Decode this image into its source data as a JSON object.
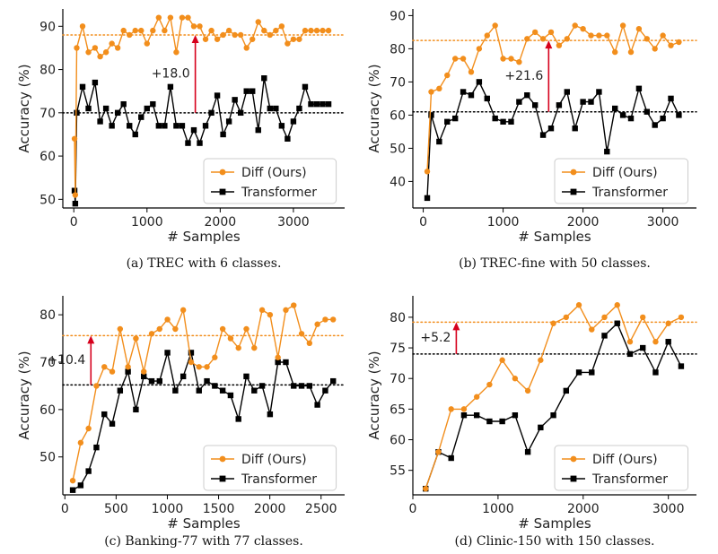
{
  "chart_data": [
    {
      "type": "line",
      "caption": "(a) TREC with 6 classes.",
      "xlabel": "# Samples",
      "ylabel": "Accuracy (%)",
      "xlim": [
        -150,
        3700
      ],
      "ylim": [
        48,
        94
      ],
      "xticks": [
        0,
        1000,
        2000,
        3000
      ],
      "yticks": [
        50,
        60,
        70,
        80,
        90
      ],
      "grid": false,
      "legend": "lower-right",
      "series": [
        {
          "name": "Diff (Ours)",
          "color": "#F28E1C",
          "marker": "circle",
          "x": [
            10,
            20,
            40,
            120,
            200,
            290,
            360,
            440,
            520,
            600,
            680,
            760,
            840,
            920,
            1000,
            1080,
            1160,
            1240,
            1320,
            1400,
            1480,
            1560,
            1640,
            1720,
            1800,
            1880,
            1960,
            2040,
            2120,
            2200,
            2280,
            2360,
            2440,
            2520,
            2600,
            2680,
            2760,
            2840,
            2920,
            3000,
            3080,
            3160,
            3240,
            3320,
            3400,
            3480
          ],
          "y": [
            64,
            51,
            85,
            90,
            84,
            85,
            83,
            84,
            86,
            85,
            89,
            88,
            89,
            89,
            86,
            89,
            92,
            89,
            92,
            84,
            92,
            92,
            90,
            90,
            87,
            89,
            87,
            88,
            89,
            88,
            88,
            85,
            87,
            91,
            89,
            88,
            89,
            90,
            86,
            87,
            87,
            89,
            89,
            89,
            89,
            89
          ]
        },
        {
          "name": "Transformer",
          "color": "#000000",
          "marker": "square",
          "x": [
            10,
            20,
            40,
            120,
            200,
            290,
            360,
            440,
            520,
            600,
            680,
            760,
            840,
            920,
            1000,
            1080,
            1160,
            1240,
            1320,
            1400,
            1480,
            1560,
            1640,
            1720,
            1800,
            1880,
            1960,
            2040,
            2120,
            2200,
            2280,
            2360,
            2440,
            2520,
            2600,
            2680,
            2760,
            2840,
            2920,
            3000,
            3080,
            3160,
            3240,
            3320,
            3400,
            3480
          ],
          "y": [
            52,
            49,
            70,
            76,
            71,
            77,
            68,
            71,
            67,
            70,
            72,
            67,
            65,
            69,
            71,
            72,
            67,
            67,
            76,
            67,
            67,
            63,
            66,
            63,
            67,
            70,
            74,
            65,
            68,
            73,
            70,
            75,
            75,
            66,
            78,
            71,
            71,
            67,
            64,
            68,
            71,
            76,
            72,
            72,
            72,
            72
          ]
        }
      ],
      "reference_lines": [
        {
          "y": 88,
          "color": "#F28E1C"
        },
        {
          "y": 70,
          "color": "#000000"
        }
      ],
      "annotation": {
        "text": "+18.0",
        "x": 1660,
        "y_from": 70,
        "y_to": 88
      }
    },
    {
      "type": "line",
      "caption": "(b) TREC-fine with 50 classes.",
      "xlabel": "# Samples",
      "ylabel": "Accuracy (%)",
      "xlim": [
        -130,
        3420
      ],
      "ylim": [
        32,
        92
      ],
      "xticks": [
        0,
        1000,
        2000,
        3000
      ],
      "yticks": [
        40,
        50,
        60,
        70,
        80,
        90
      ],
      "grid": false,
      "legend": "lower-right",
      "series": [
        {
          "name": "Diff (Ours)",
          "color": "#F28E1C",
          "marker": "circle",
          "x": [
            50,
            100,
            200,
            300,
            400,
            500,
            600,
            700,
            800,
            900,
            1000,
            1100,
            1200,
            1300,
            1400,
            1500,
            1600,
            1700,
            1800,
            1900,
            2000,
            2100,
            2200,
            2300,
            2400,
            2500,
            2600,
            2700,
            2800,
            2900,
            3000,
            3100,
            3200
          ],
          "y": [
            43,
            67,
            68,
            72,
            77,
            77,
            73,
            80,
            84,
            87,
            77,
            77,
            76,
            83,
            85,
            83,
            85,
            81,
            83,
            87,
            86,
            84,
            84,
            84,
            79,
            87,
            79,
            86,
            83,
            80,
            84,
            81,
            82
          ]
        },
        {
          "name": "Transformer",
          "color": "#000000",
          "marker": "square",
          "x": [
            50,
            100,
            200,
            300,
            400,
            500,
            600,
            700,
            800,
            900,
            1000,
            1100,
            1200,
            1300,
            1400,
            1500,
            1600,
            1700,
            1800,
            1900,
            2000,
            2100,
            2200,
            2300,
            2400,
            2500,
            2600,
            2700,
            2800,
            2900,
            3000,
            3100,
            3200
          ],
          "y": [
            35,
            60,
            52,
            58,
            59,
            67,
            66,
            70,
            65,
            59,
            58,
            58,
            64,
            66,
            63,
            54,
            56,
            63,
            67,
            56,
            64,
            64,
            67,
            49,
            62,
            60,
            59,
            68,
            61,
            57,
            59,
            65,
            60
          ]
        }
      ],
      "reference_lines": [
        {
          "y": 82.5,
          "color": "#F28E1C"
        },
        {
          "y": 61,
          "color": "#000000"
        }
      ],
      "annotation": {
        "text": "+21.6",
        "x": 1570,
        "y_from": 61,
        "y_to": 82.5
      }
    },
    {
      "type": "line",
      "caption": "(c) Banking-77 with 77 classes.",
      "xlabel": "# Samples",
      "ylabel": "Accuracy (%)",
      "xlim": [
        -20,
        2730
      ],
      "ylim": [
        42,
        84
      ],
      "xticks": [
        0,
        500,
        1000,
        1500,
        2000,
        2500
      ],
      "yticks": [
        50,
        60,
        70,
        80
      ],
      "grid": false,
      "legend": "lower-right",
      "series": [
        {
          "name": "Diff (Ours)",
          "color": "#F28E1C",
          "marker": "circle",
          "x": [
            77,
            154,
            231,
            308,
            385,
            462,
            539,
            616,
            693,
            770,
            847,
            924,
            1001,
            1078,
            1155,
            1232,
            1309,
            1386,
            1463,
            1540,
            1617,
            1694,
            1771,
            1848,
            1925,
            2002,
            2079,
            2156,
            2233,
            2310,
            2387,
            2464,
            2541,
            2618
          ],
          "y": [
            45,
            53,
            56,
            65,
            69,
            68,
            77,
            69,
            75,
            68,
            76,
            77,
            79,
            77,
            81,
            70,
            69,
            69,
            71,
            77,
            75,
            73,
            77,
            73,
            81,
            80,
            71,
            81,
            82,
            76,
            74,
            78,
            79,
            79
          ]
        },
        {
          "name": "Transformer",
          "color": "#000000",
          "marker": "square",
          "x": [
            77,
            154,
            231,
            308,
            385,
            462,
            539,
            616,
            693,
            770,
            847,
            924,
            1001,
            1078,
            1155,
            1232,
            1309,
            1386,
            1463,
            1540,
            1617,
            1694,
            1771,
            1848,
            1925,
            2002,
            2079,
            2156,
            2233,
            2310,
            2387,
            2464,
            2541,
            2618
          ],
          "y": [
            43,
            44,
            47,
            52,
            59,
            57,
            64,
            68,
            60,
            67,
            66,
            66,
            72,
            64,
            67,
            72,
            64,
            66,
            65,
            64,
            63,
            58,
            67,
            64,
            65,
            59,
            70,
            70,
            65,
            65,
            65,
            61,
            64,
            66
          ]
        }
      ],
      "reference_lines": [
        {
          "y": 75.6,
          "color": "#F28E1C"
        },
        {
          "y": 65.2,
          "color": "#000000"
        }
      ],
      "annotation": {
        "text": "+10.4",
        "x": 254,
        "y_from": 65.2,
        "y_to": 75.6
      }
    },
    {
      "type": "line",
      "caption": "(d) Clinic-150 with 150 classes.",
      "xlabel": "# Samples",
      "ylabel": "Accuracy (%)",
      "xlim": [
        0,
        3330
      ],
      "ylim": [
        51,
        83.5
      ],
      "xticks": [
        0,
        1000,
        2000,
        3000
      ],
      "yticks": [
        55,
        60,
        65,
        70,
        75,
        80
      ],
      "grid": false,
      "legend": "lower-right",
      "series": [
        {
          "name": "Diff (Ours)",
          "color": "#F28E1C",
          "marker": "circle",
          "x": [
            150,
            300,
            450,
            600,
            750,
            900,
            1050,
            1200,
            1350,
            1500,
            1650,
            1800,
            1950,
            2100,
            2250,
            2400,
            2550,
            2700,
            2850,
            3000,
            3150
          ],
          "y": [
            52,
            58,
            65,
            65,
            67,
            69,
            73,
            70,
            68,
            73,
            79,
            80,
            82,
            78,
            80,
            82,
            76,
            80,
            76,
            79,
            80
          ]
        },
        {
          "name": "Transformer",
          "color": "#000000",
          "marker": "square",
          "x": [
            150,
            300,
            450,
            600,
            750,
            900,
            1050,
            1200,
            1350,
            1500,
            1650,
            1800,
            1950,
            2100,
            2250,
            2400,
            2550,
            2700,
            2850,
            3000,
            3150
          ],
          "y": [
            52,
            58,
            57,
            64,
            64,
            63,
            63,
            64,
            58,
            62,
            64,
            68,
            71,
            71,
            77,
            79,
            74,
            75,
            71,
            76,
            72
          ]
        }
      ],
      "reference_lines": [
        {
          "y": 79.2,
          "color": "#F28E1C"
        },
        {
          "y": 74,
          "color": "#000000"
        }
      ],
      "annotation": {
        "text": "+5.2",
        "x": 510,
        "y_from": 74,
        "y_to": 79.2
      }
    }
  ]
}
